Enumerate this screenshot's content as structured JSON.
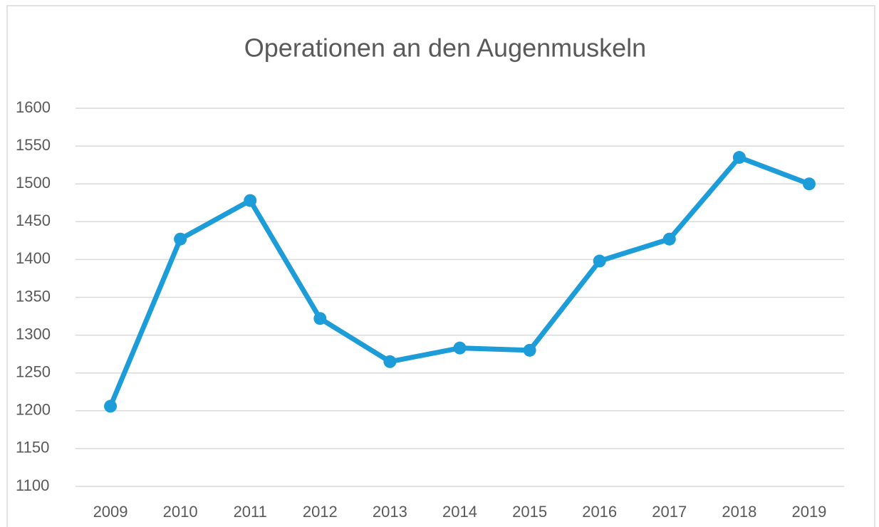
{
  "chart_data": {
    "type": "line",
    "title": "Operationen an den Augenmuskeln",
    "categories": [
      "2009",
      "2010",
      "2011",
      "2012",
      "2013",
      "2014",
      "2015",
      "2016",
      "2017",
      "2018",
      "2019"
    ],
    "series": [
      {
        "name": "Operationen an den Augenmuskeln",
        "color": "#1c9cd8",
        "values": [
          1206,
          1427,
          1478,
          1322,
          1265,
          1283,
          1280,
          1398,
          1427,
          1535,
          1500
        ]
      }
    ],
    "ylim": [
      1100,
      1600
    ],
    "yticks": [
      1100,
      1150,
      1200,
      1250,
      1300,
      1350,
      1400,
      1450,
      1500,
      1550,
      1600
    ],
    "grid": true,
    "legend": false
  }
}
